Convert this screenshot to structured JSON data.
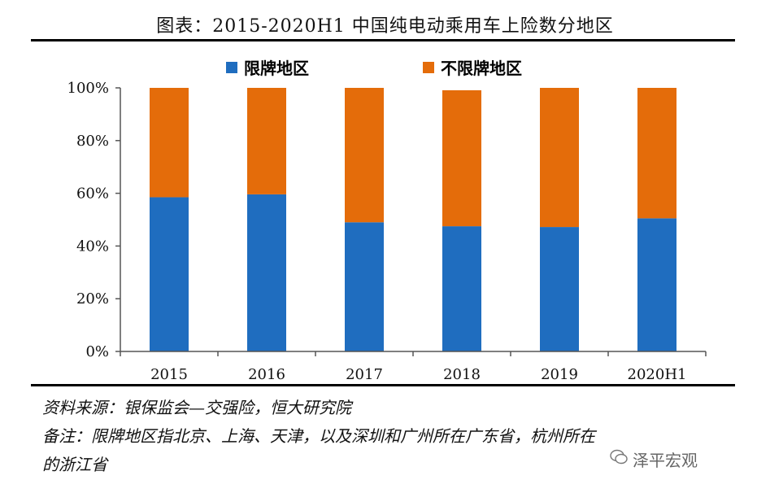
{
  "title": "图表：2015-2020H1 中国纯电动乘用车上险数分地区",
  "source": "资料来源：银保监会—交强险，恒大研究院",
  "note_line1": "备注：限牌地区指北京、上海、天津，以及深圳和广州所在广东省，杭州所在",
  "note_line2": "的浙江省",
  "watermark": "泽平宏观",
  "colors": {
    "restricted": "#1F6DBF",
    "unrestricted": "#E46C0A"
  },
  "chart_data": {
    "type": "bar",
    "stacked": true,
    "categories": [
      "2015",
      "2016",
      "2017",
      "2018",
      "2019",
      "2020H1"
    ],
    "series": [
      {
        "name": "限牌地区",
        "values": [
          58.5,
          59.6,
          49.0,
          47.5,
          47.2,
          50.5
        ]
      },
      {
        "name": "不限牌地区",
        "values": [
          41.5,
          40.4,
          51.0,
          51.6,
          52.8,
          49.5
        ]
      }
    ],
    "ylim": [
      0,
      100
    ],
    "yticks": [
      "0%",
      "20%",
      "40%",
      "60%",
      "80%",
      "100%"
    ],
    "grid": false,
    "legend_position": "top"
  }
}
